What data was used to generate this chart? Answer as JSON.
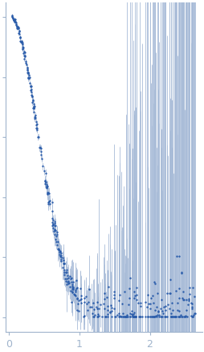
{
  "title": "",
  "xlabel": "",
  "ylabel": "",
  "xlim": [
    -0.05,
    2.75
  ],
  "background_color": "#ffffff",
  "dot_color": "#2a5caa",
  "error_color": "#a8bcd8",
  "dot_size": 3,
  "seed": 42,
  "xticks": [
    0,
    1,
    2
  ],
  "axis_color": "#a0b4cc",
  "ytick_positions": [
    0.0,
    0.2,
    0.4,
    0.6,
    0.8,
    1.0
  ],
  "ylim": [
    -0.05,
    1.05
  ]
}
